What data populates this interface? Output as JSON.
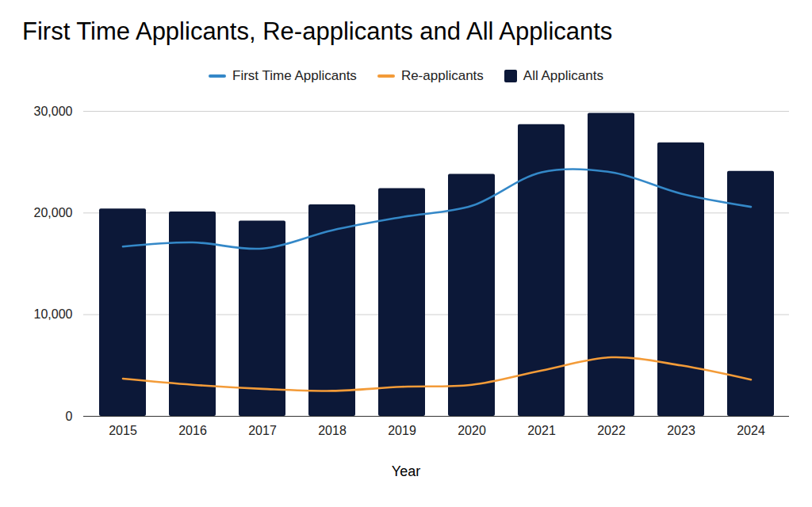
{
  "chart_data": {
    "type": "bar",
    "title": "First Time Applicants, Re-applicants and All Applicants",
    "x_label": "Year",
    "categories": [
      "2015",
      "2016",
      "2017",
      "2018",
      "2019",
      "2020",
      "2021",
      "2022",
      "2023",
      "2024"
    ],
    "series": [
      {
        "name": "First Time Applicants",
        "type": "line",
        "color": "#3488c8",
        "values": [
          16700,
          17100,
          16500,
          18300,
          19600,
          20700,
          24000,
          24000,
          21900,
          20600
        ]
      },
      {
        "name": "Re-applicants",
        "type": "line",
        "color": "#f39b38",
        "values": [
          3700,
          3100,
          2700,
          2500,
          2900,
          3100,
          4500,
          5800,
          5000,
          3600
        ]
      },
      {
        "name": "All Applicants",
        "type": "bar",
        "color": "#0c1838",
        "values": [
          20400,
          20100,
          19200,
          20800,
          22400,
          23800,
          28700,
          29800,
          26900,
          24100
        ]
      }
    ],
    "ylim": [
      0,
      30000
    ],
    "yticks": [
      0,
      {
        "value": 10000,
        "label": "10,000"
      },
      {
        "value": 20000,
        "label": "20,000"
      },
      {
        "value": 30000,
        "label": "30,000"
      }
    ],
    "grid": true,
    "legend": "top"
  }
}
